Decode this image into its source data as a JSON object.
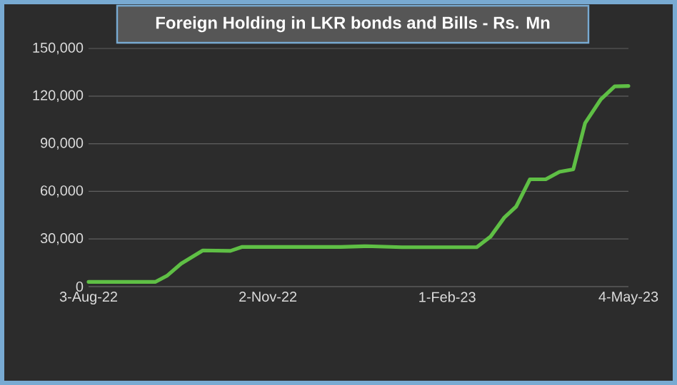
{
  "chart_data": {
    "type": "line",
    "title": "Foreign Holding in LKR bonds and Bills -  Rs. Mn",
    "x": [
      "2022-08-03",
      "2022-09-06",
      "2022-09-12",
      "2022-09-19",
      "2022-09-30",
      "2022-10-14",
      "2022-10-20",
      "2022-12-09",
      "2022-12-22",
      "2023-01-09",
      "2023-02-16",
      "2023-02-23",
      "2023-03-02",
      "2023-03-08",
      "2023-03-15",
      "2023-03-23",
      "2023-03-30",
      "2023-04-06",
      "2023-04-12",
      "2023-04-20",
      "2023-04-27",
      "2023-05-04"
    ],
    "series": [
      {
        "color": "#5fbf45",
        "values": [
          3000,
          3000,
          7000,
          14500,
          22800,
          22500,
          25000,
          25000,
          25500,
          24800,
          24800,
          31500,
          43500,
          50400,
          67600,
          67600,
          72300,
          73900,
          103000,
          118000,
          126100,
          126400
        ]
      }
    ],
    "xlim": [
      "2022-08-03",
      "2023-05-04"
    ],
    "xticks": [
      {
        "value": "2022-08-03",
        "label": "3-Aug-22"
      },
      {
        "value": "2022-11-02",
        "label": "2-Nov-22"
      },
      {
        "value": "2023-02-01",
        "label": "1-Feb-23"
      },
      {
        "value": "2023-05-04",
        "label": "4-May-23"
      }
    ],
    "ylim": [
      0,
      150000
    ],
    "yticks": [
      {
        "value": 0,
        "label": "0"
      },
      {
        "value": 30000,
        "label": "30,000"
      },
      {
        "value": 60000,
        "label": "60,000"
      },
      {
        "value": 90000,
        "label": "90,000"
      },
      {
        "value": 120000,
        "label": "120,000"
      },
      {
        "value": 150000,
        "label": "150,000"
      }
    ],
    "grid": "y",
    "marker": "none"
  }
}
